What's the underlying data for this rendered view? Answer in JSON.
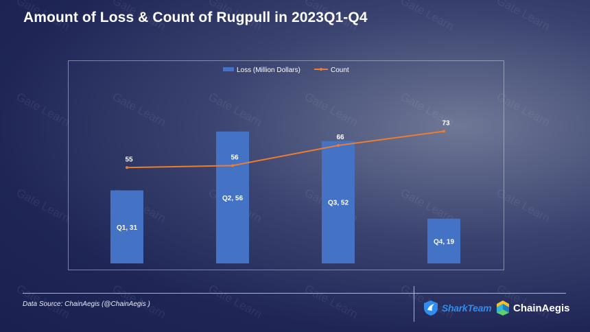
{
  "page": {
    "title": "Amount of Loss & Count of Rugpull in 2023Q1-Q4",
    "source": "Data Source: ChainAegis (@ChainAegis )",
    "watermark_text": "Gate Learn",
    "logos": {
      "sharkteam": "SharkTeam",
      "chainaegis": "ChainAegis",
      "sharkteam_icon": "shark-shield-icon",
      "chainaegis_icon": "chainaegis-emblem-icon"
    }
  },
  "chart_data": {
    "type": "bar",
    "categories": [
      "Q1",
      "Q2",
      "Q3",
      "Q4"
    ],
    "series": [
      {
        "name": "Loss (Million Dollars)",
        "type": "bar",
        "values": [
          31,
          56,
          52,
          19
        ],
        "labels": [
          "Q1,  31",
          "Q2,  56",
          "Q3,  52",
          "Q4,  19"
        ],
        "color": "#4472c4"
      },
      {
        "name": "Count",
        "type": "line",
        "values": [
          55,
          56,
          66,
          73
        ],
        "labels": [
          "55",
          "56",
          "66",
          "73"
        ],
        "color": "#ed7d31"
      }
    ],
    "legend_position": "top-center",
    "grid": false,
    "axes_visible": false,
    "bar_ylim": [
      0,
      90
    ],
    "line_ylim": [
      0,
      100
    ]
  }
}
